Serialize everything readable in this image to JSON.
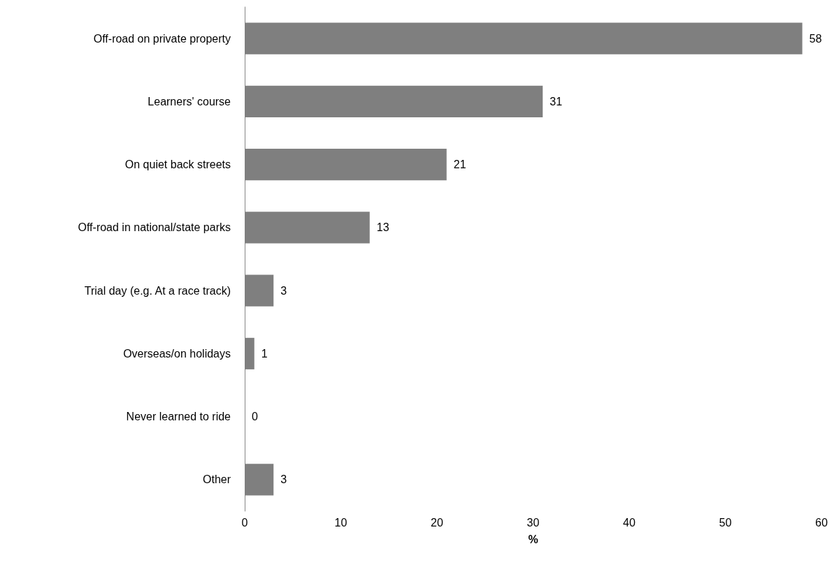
{
  "chart_data": {
    "type": "bar",
    "orientation": "horizontal",
    "xlabel": "%",
    "categories": [
      "Off-road on private property",
      "Learners' course",
      "On quiet back streets",
      "Off-road in national/state parks",
      "Trial day (e.g. At a race track)",
      "Overseas/on holidays",
      "Never learned to ride",
      "Other"
    ],
    "values": [
      58,
      31,
      21,
      13,
      3,
      1,
      0,
      3
    ],
    "color": "#7f7f7f",
    "xlim": [
      0,
      60
    ],
    "xticks": [
      0,
      10,
      20,
      30,
      40,
      50,
      60
    ],
    "grid": false,
    "data_labels": true
  }
}
